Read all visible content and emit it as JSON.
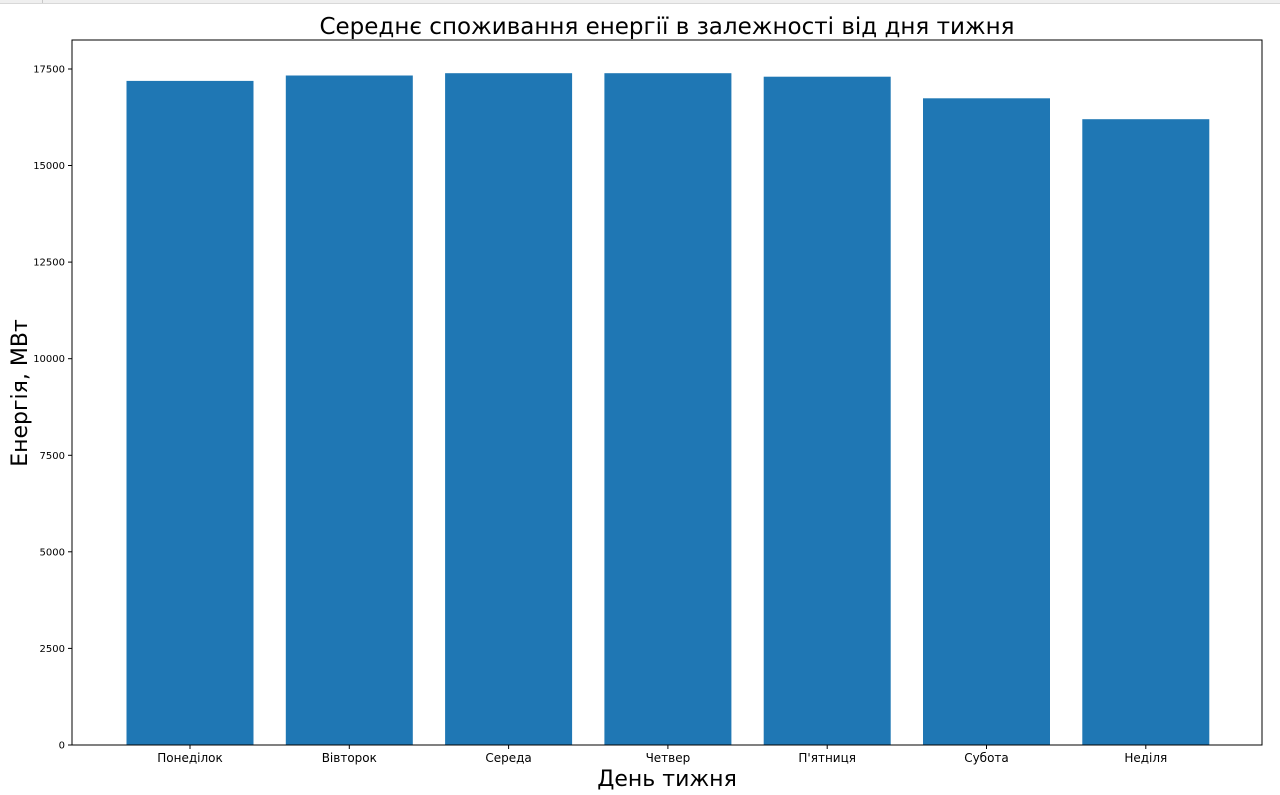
{
  "chart_data": {
    "type": "bar",
    "title": "Середнє споживання енергії в залежності від дня тижня",
    "xlabel": "День тижня",
    "ylabel": "Енергія, МВт",
    "categories": [
      "Понеділок",
      "Вівторок",
      "Середа",
      "Четвер",
      "П'ятниця",
      "Субота",
      "Неділя"
    ],
    "values": [
      17190,
      17330,
      17390,
      17390,
      17300,
      16740,
      16200
    ],
    "ylim": [
      0,
      18250
    ],
    "yticks": [
      0,
      2500,
      5000,
      7500,
      10000,
      12500,
      15000,
      17500
    ],
    "ytick_labels": [
      "0",
      "2500",
      "5000",
      "7500",
      "10000",
      "12500",
      "15000",
      "17500"
    ],
    "grid": false,
    "colors": {
      "bar": "#1f77b4"
    }
  }
}
